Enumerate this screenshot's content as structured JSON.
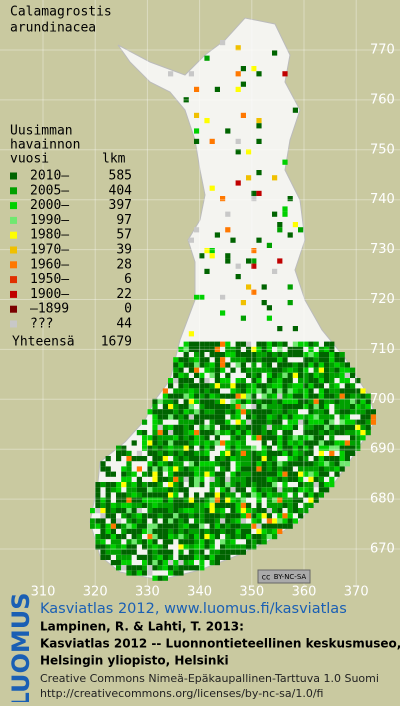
{
  "title": [
    "Calamagrostis",
    "arundinacea"
  ],
  "legend": {
    "heading": [
      "Uusimman",
      "havainnon",
      "vuosi"
    ],
    "count_heading": "lkm",
    "items": [
      {
        "label": "2010–",
        "count": 585,
        "color": "#006400"
      },
      {
        "label": "2005–",
        "count": 404,
        "color": "#00a000"
      },
      {
        "label": "2000–",
        "count": 397,
        "color": "#00d000"
      },
      {
        "label": "1990–",
        "count": 97,
        "color": "#70e870"
      },
      {
        "label": "1980–",
        "count": 57,
        "color": "#ffff00"
      },
      {
        "label": "1970–",
        "count": 39,
        "color": "#f0c000"
      },
      {
        "label": "1960–",
        "count": 28,
        "color": "#ff7800"
      },
      {
        "label": "1950–",
        "count": 6,
        "color": "#e03000"
      },
      {
        "label": "1900–",
        "count": 22,
        "color": "#c00000"
      },
      {
        "label": "–1899",
        "count": 0,
        "color": "#7a0000"
      },
      {
        "label": "???",
        "count": 44,
        "color": "#c8c8c8"
      }
    ],
    "total_label": "Yhteensä",
    "total": 1679
  },
  "y_ticks": [
    770,
    760,
    750,
    740,
    730,
    720,
    710,
    700,
    690,
    680,
    670
  ],
  "x_ticks": [
    310,
    320,
    330,
    340,
    350,
    360,
    370
  ],
  "badge": [
    "cc",
    "BY-NC-SA"
  ],
  "side_label": "LUOMUS",
  "header_link": "Kasviatlas 2012, www.luomus.fi/kasviatlas",
  "citation": [
    "Lampinen, R. & Lahti, T. 2013:",
    "Kasviatlas 2012 -- Luonnontieteellinen keskusmuseo,",
    "Helsingin yliopisto, Helsinki"
  ],
  "license": [
    "Creative Commons Nimeä-Epäkaupallinen-Tarttuva 1.0 Suomi",
    "http://creativecommons.org/licenses/by-nc-sa/1.0/fi"
  ]
}
